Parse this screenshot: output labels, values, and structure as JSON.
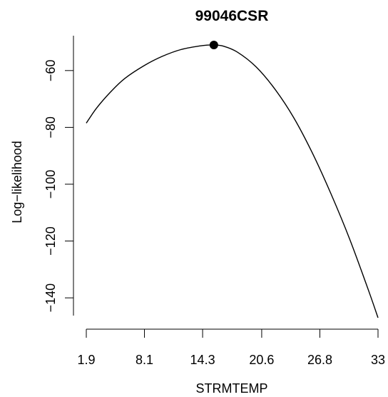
{
  "chart_data": {
    "type": "line",
    "title": "99046CSR",
    "xlabel": "STRMTEMP",
    "ylabel": "Log−likelihood",
    "x_ticks": [
      1.9,
      8.1,
      14.3,
      20.6,
      26.8,
      33
    ],
    "x_tick_labels": [
      "1.9",
      "8.1",
      "14.3",
      "20.6",
      "26.8",
      "33"
    ],
    "y_ticks": [
      -140,
      -120,
      -100,
      -80,
      -60
    ],
    "y_tick_labels": [
      "−140",
      "−120",
      "−100",
      "−80",
      "−60"
    ],
    "xlim": [
      1.9,
      33
    ],
    "ylim": [
      -147,
      -51
    ],
    "grid": false,
    "series": [
      {
        "x": [
          1.9,
          3.0,
          4.5,
          6.0,
          8.1,
          10.0,
          12.0,
          14.3,
          15.5,
          16.5,
          18.0,
          20.0,
          22.0,
          24.0,
          26.0,
          28.0,
          30.0,
          32.0,
          33.0
        ],
        "y": [
          -78.5,
          -73.2,
          -67.5,
          -62.8,
          -58.2,
          -55.0,
          -52.6,
          -51.2,
          -51.0,
          -51.4,
          -53.5,
          -58.7,
          -66.5,
          -76.5,
          -89.0,
          -103.5,
          -119.5,
          -137.5,
          -147.0
        ]
      }
    ],
    "highlight_point": {
      "x": 15.5,
      "y": -51.0
    }
  }
}
